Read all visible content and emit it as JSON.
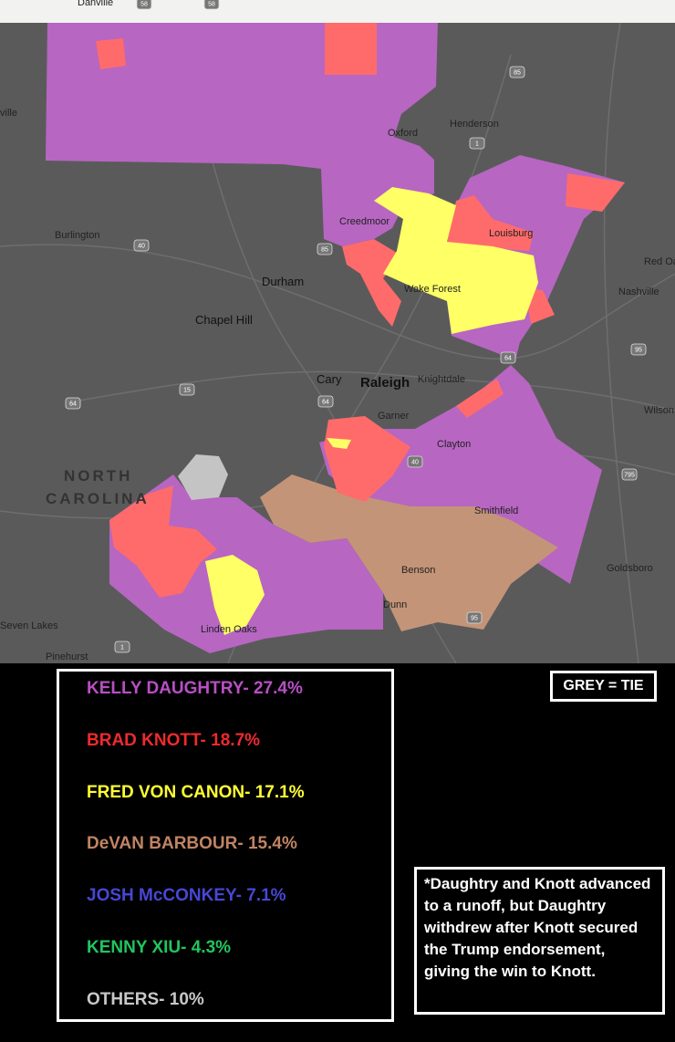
{
  "map": {
    "places": [
      "Danville",
      "ville",
      "Henderson",
      "Oxford",
      "Burlington",
      "Creedmoor",
      "Louisburg",
      "Red Oak",
      "Nashville",
      "Durham",
      "Wake Forest",
      "Chapel Hill",
      "Cary",
      "Raleigh",
      "Knightdale",
      "Wilson",
      "Garner",
      "Clayton",
      "NORTH",
      "CAROLINA",
      "Smithfield",
      "Benson",
      "Goldsboro",
      "Dunn",
      "Seven Lakes",
      "Linden Oaks",
      "Pinehurst"
    ],
    "routes": [
      "58",
      "58",
      "85",
      "1",
      "85",
      "40",
      "15",
      "64",
      "64",
      "64",
      "95",
      "795",
      "40",
      "1",
      "95"
    ],
    "colors": {
      "daughtry": "#b766c2",
      "knott": "#ff6b6b",
      "von_canon": "#ffff66",
      "barbour": "#c39478",
      "tie": "#c4c4c4"
    }
  },
  "legend": {
    "entries": [
      {
        "text": "KELLY DAUGHTRY- 27.4%",
        "color": "#b84fc4"
      },
      {
        "text": "BRAD KNOTT- 18.7%",
        "color": "#ee2a2f"
      },
      {
        "text": "FRED VON CANON- 17.1%",
        "color": "#ffff33"
      },
      {
        "text": "DeVAN BARBOUR- 15.4%",
        "color": "#c08464"
      },
      {
        "text": "JOSH McCONKEY- 7.1%",
        "color": "#4747d6"
      },
      {
        "text": "KENNY XIU- 4.3%",
        "color": "#22c55e"
      },
      {
        "text": "OTHERS- 10%",
        "color": "#c8c8c8"
      }
    ],
    "tie_note": "GREY = TIE",
    "footnote": "*Daughtry and Knott advanced to a runoff, but Daughtry withdrew after Knott secured the Trump endorsement, giving the win to Knott."
  }
}
